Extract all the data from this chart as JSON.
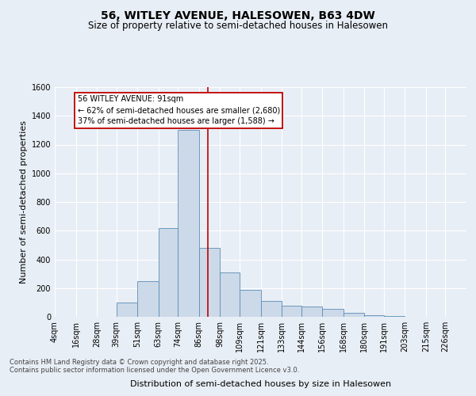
{
  "title": "56, WITLEY AVENUE, HALESOWEN, B63 4DW",
  "subtitle": "Size of property relative to semi-detached houses in Halesowen",
  "xlabel": "Distribution of semi-detached houses by size in Halesowen",
  "ylabel": "Number of semi-detached properties",
  "property_size": 91,
  "pct_smaller": 62,
  "pct_larger": 37,
  "n_smaller": 2680,
  "n_larger": 1588,
  "bar_color": "#ccd9e8",
  "bar_edge_color": "#5b8db8",
  "vline_color": "#c00000",
  "background_color": "#e8eef5",
  "plot_bg_color": "#e8eef5",
  "bins": [
    4,
    16,
    28,
    39,
    51,
    63,
    74,
    86,
    98,
    109,
    121,
    133,
    144,
    156,
    168,
    180,
    191,
    203,
    215,
    226,
    238
  ],
  "counts": [
    0,
    0,
    0,
    100,
    250,
    620,
    1300,
    480,
    310,
    185,
    110,
    75,
    70,
    55,
    30,
    10,
    5,
    2,
    0,
    0
  ],
  "ylim": [
    0,
    1600
  ],
  "yticks": [
    0,
    200,
    400,
    600,
    800,
    1000,
    1200,
    1400,
    1600
  ],
  "footer_line1": "Contains HM Land Registry data © Crown copyright and database right 2025.",
  "footer_line2": "Contains public sector information licensed under the Open Government Licence v3.0.",
  "title_fontsize": 10,
  "subtitle_fontsize": 8.5,
  "axis_label_fontsize": 8,
  "tick_fontsize": 7,
  "footer_fontsize": 6.0,
  "annot_fontsize": 7
}
